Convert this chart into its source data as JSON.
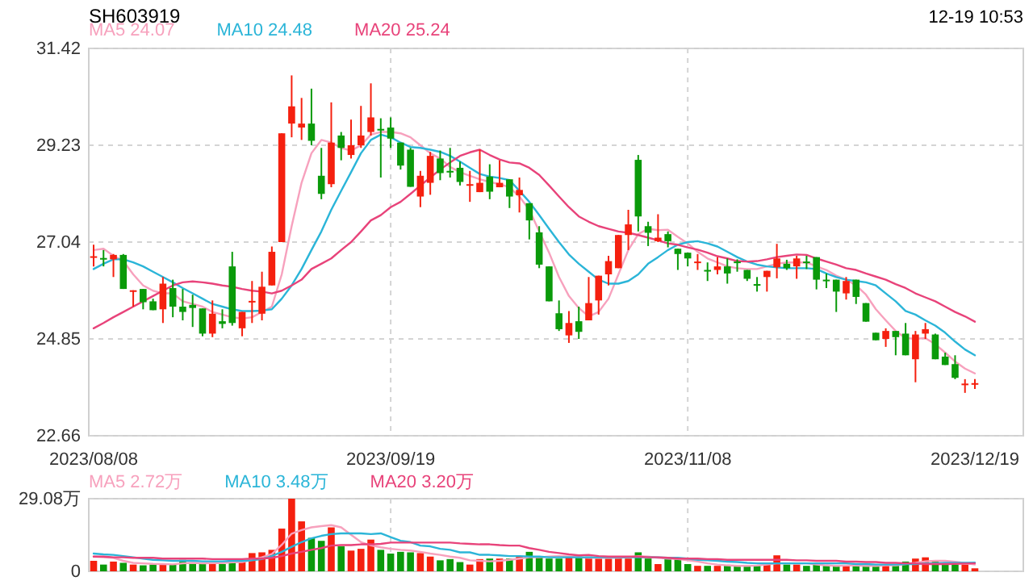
{
  "chart_data": [
    {
      "type": "candlestick",
      "title": "SH603919",
      "subtitle": "12-19 10:53",
      "categories": [
        "2023/08/08",
        null,
        null,
        null,
        null,
        null,
        null,
        null,
        null,
        null,
        null,
        null,
        null,
        null,
        null,
        null,
        null,
        null,
        null,
        null,
        null,
        null,
        null,
        null,
        null,
        null,
        null,
        null,
        null,
        null,
        "2023/09/19",
        null,
        null,
        null,
        null,
        null,
        null,
        null,
        null,
        null,
        null,
        null,
        null,
        null,
        null,
        null,
        null,
        null,
        null,
        null,
        null,
        null,
        null,
        null,
        null,
        null,
        null,
        null,
        null,
        null,
        "2023/11/08",
        null,
        null,
        null,
        null,
        null,
        null,
        null,
        null,
        null,
        null,
        null,
        null,
        null,
        null,
        null,
        null,
        null,
        null,
        null,
        null,
        null,
        null,
        null,
        null,
        null,
        null,
        null,
        null,
        "2023/12/19"
      ],
      "ohlc": [
        [
          26.7,
          26.98,
          26.49,
          26.72
        ],
        [
          26.68,
          26.86,
          26.49,
          26.66
        ],
        [
          26.65,
          26.77,
          26.25,
          26.75
        ],
        [
          26.75,
          26.77,
          25.98,
          25.98
        ],
        [
          25.93,
          25.95,
          25.58,
          25.95
        ],
        [
          25.98,
          25.98,
          25.52,
          25.68
        ],
        [
          25.7,
          25.76,
          25.5,
          25.5
        ],
        [
          25.52,
          26.25,
          25.21,
          26.1
        ],
        [
          26.0,
          26.19,
          25.34,
          25.58
        ],
        [
          25.58,
          25.98,
          25.27,
          25.46
        ],
        [
          25.62,
          25.85,
          25.12,
          25.55
        ],
        [
          25.54,
          25.54,
          24.91,
          24.97
        ],
        [
          24.97,
          25.72,
          24.89,
          25.42
        ],
        [
          25.25,
          25.52,
          25.09,
          25.19
        ],
        [
          26.49,
          26.82,
          25.15,
          25.21
        ],
        [
          25.09,
          25.46,
          24.91,
          25.46
        ],
        [
          25.69,
          26.16,
          25.21,
          25.71
        ],
        [
          25.42,
          26.37,
          25.27,
          26.03
        ],
        [
          26.06,
          26.94,
          26.06,
          26.82
        ],
        [
          27.04,
          29.5,
          27.04,
          29.5
        ],
        [
          29.72,
          30.81,
          29.41,
          30.11
        ],
        [
          29.63,
          30.3,
          29.35,
          29.72
        ],
        [
          29.72,
          30.51,
          29.23,
          29.33
        ],
        [
          28.54,
          29.17,
          28.01,
          28.13
        ],
        [
          28.35,
          30.2,
          28.28,
          29.29
        ],
        [
          29.45,
          29.53,
          28.89,
          29.17
        ],
        [
          29.01,
          29.81,
          28.93,
          29.23
        ],
        [
          29.23,
          30.12,
          29.17,
          29.45
        ],
        [
          29.53,
          30.63,
          29.45,
          29.86
        ],
        [
          29.6,
          29.84,
          28.5,
          29.58
        ],
        [
          29.63,
          29.86,
          29.17,
          29.38
        ],
        [
          29.29,
          29.29,
          28.68,
          28.77
        ],
        [
          29.13,
          29.17,
          28.29,
          28.29
        ],
        [
          28.07,
          28.65,
          27.83,
          28.54
        ],
        [
          28.38,
          29.08,
          28.11,
          28.99
        ],
        [
          28.93,
          29.11,
          28.44,
          28.6
        ],
        [
          28.65,
          29.17,
          28.5,
          28.64
        ],
        [
          28.72,
          28.86,
          28.32,
          28.4
        ],
        [
          28.33,
          28.65,
          27.95,
          28.35
        ],
        [
          28.17,
          29.13,
          28.17,
          28.38
        ],
        [
          28.52,
          28.8,
          28.01,
          28.18
        ],
        [
          28.28,
          28.89,
          28.28,
          28.38
        ],
        [
          28.46,
          28.46,
          27.81,
          28.07
        ],
        [
          28.1,
          28.5,
          27.71,
          28.22
        ],
        [
          27.92,
          27.92,
          27.1,
          27.53
        ],
        [
          27.26,
          27.4,
          26.45,
          26.53
        ],
        [
          26.49,
          26.49,
          25.7,
          25.7
        ],
        [
          25.43,
          25.72,
          25.03,
          25.07
        ],
        [
          24.93,
          25.48,
          24.76,
          25.21
        ],
        [
          25.25,
          25.58,
          24.85,
          25.01
        ],
        [
          25.27,
          26.25,
          25.27,
          25.66
        ],
        [
          25.72,
          26.28,
          25.4,
          26.28
        ],
        [
          26.31,
          26.73,
          26.06,
          26.61
        ],
        [
          26.45,
          27.2,
          26.45,
          27.2
        ],
        [
          27.2,
          27.77,
          26.86,
          27.44
        ],
        [
          28.9,
          29.01,
          27.28,
          27.62
        ],
        [
          27.4,
          27.5,
          26.95,
          27.25
        ],
        [
          27.06,
          27.67,
          27.04,
          27.14
        ],
        [
          27.22,
          27.28,
          26.92,
          27.06
        ],
        [
          26.89,
          26.89,
          26.41,
          26.77
        ],
        [
          26.8,
          26.8,
          26.49,
          26.67
        ],
        [
          26.58,
          26.77,
          26.41,
          26.6
        ],
        [
          26.41,
          26.58,
          26.16,
          26.4
        ],
        [
          26.41,
          26.7,
          26.31,
          26.49
        ],
        [
          26.49,
          26.67,
          26.1,
          26.33
        ],
        [
          26.6,
          26.65,
          26.37,
          26.59
        ],
        [
          26.41,
          26.41,
          26.16,
          26.21
        ],
        [
          26.09,
          26.25,
          25.92,
          26.08
        ],
        [
          26.25,
          26.39,
          25.92,
          26.39
        ],
        [
          26.47,
          27.0,
          26.22,
          26.67
        ],
        [
          26.55,
          26.64,
          26.41,
          26.45
        ],
        [
          26.49,
          26.73,
          26.21,
          26.67
        ],
        [
          26.6,
          26.73,
          26.43,
          26.59
        ],
        [
          26.7,
          26.7,
          25.97,
          26.19
        ],
        [
          26.19,
          26.33,
          26.0,
          26.18
        ],
        [
          26.19,
          26.19,
          25.46,
          25.92
        ],
        [
          25.88,
          26.25,
          25.74,
          26.16
        ],
        [
          26.19,
          26.19,
          25.64,
          25.8
        ],
        [
          25.66,
          25.66,
          25.24,
          25.24
        ],
        [
          24.99,
          24.99,
          24.82,
          24.82
        ],
        [
          24.85,
          25.09,
          24.67,
          25.03
        ],
        [
          25.03,
          25.03,
          24.48,
          24.89
        ],
        [
          24.97,
          25.21,
          24.48,
          24.48
        ],
        [
          24.39,
          25.03,
          23.87,
          24.95
        ],
        [
          24.97,
          25.21,
          24.85,
          25.07
        ],
        [
          24.95,
          24.97,
          24.39,
          24.39
        ],
        [
          24.45,
          24.54,
          24.26,
          24.26
        ],
        [
          24.28,
          24.48,
          23.94,
          23.97
        ],
        [
          23.82,
          23.94,
          23.63,
          23.84
        ],
        [
          23.83,
          23.94,
          23.72,
          23.85
        ]
      ],
      "colors": [
        "#f5200f",
        "#0a9a0a",
        "#f5200f",
        "#0a9a0a",
        "#f5200f",
        "#0a9a0a",
        "#0a9a0a",
        "#f5200f",
        "#0a9a0a",
        "#0a9a0a",
        "#0a9a0a",
        "#0a9a0a",
        "#f5200f",
        "#0a9a0a",
        "#0a9a0a",
        "#f5200f",
        "#f5200f",
        "#f5200f",
        "#f5200f",
        "#f5200f",
        "#f5200f",
        "#f5200f",
        "#0a9a0a",
        "#0a9a0a",
        "#f5200f",
        "#0a9a0a",
        "#f5200f",
        "#f5200f",
        "#f5200f",
        "#0a9a0a",
        "#0a9a0a",
        "#0a9a0a",
        "#0a9a0a",
        "#f5200f",
        "#f5200f",
        "#0a9a0a",
        "#0a9a0a",
        "#0a9a0a",
        "#f5200f",
        "#f5200f",
        "#0a9a0a",
        "#f5200f",
        "#0a9a0a",
        "#f5200f",
        "#0a9a0a",
        "#0a9a0a",
        "#0a9a0a",
        "#0a9a0a",
        "#f5200f",
        "#0a9a0a",
        "#f5200f",
        "#f5200f",
        "#f5200f",
        "#f5200f",
        "#f5200f",
        "#0a9a0a",
        "#0a9a0a",
        "#f5200f",
        "#0a9a0a",
        "#0a9a0a",
        "#0a9a0a",
        "#f5200f",
        "#0a9a0a",
        "#f5200f",
        "#0a9a0a",
        "#0a9a0a",
        "#0a9a0a",
        "#0a9a0a",
        "#f5200f",
        "#f5200f",
        "#0a9a0a",
        "#f5200f",
        "#0a9a0a",
        "#0a9a0a",
        "#0a9a0a",
        "#0a9a0a",
        "#f5200f",
        "#0a9a0a",
        "#0a9a0a",
        "#0a9a0a",
        "#f5200f",
        "#0a9a0a",
        "#0a9a0a",
        "#f5200f",
        "#f5200f",
        "#0a9a0a",
        "#0a9a0a",
        "#0a9a0a",
        "#f5200f",
        "#f5200f"
      ],
      "ylim": [
        22.66,
        31.42
      ],
      "yticks": [
        22.66,
        24.85,
        27.04,
        29.23,
        31.42
      ],
      "grid": true,
      "legend": "top left",
      "series": [
        {
          "type": "line",
          "name": "MA5 24.07",
          "color": "#f7a1bd",
          "values": [
            26.86,
            26.89,
            26.73,
            26.61,
            26.31,
            26.06,
            25.94,
            25.88,
            25.88,
            25.7,
            25.64,
            25.58,
            25.46,
            25.4,
            25.34,
            25.31,
            25.34,
            25.46,
            25.58,
            26.31,
            27.4,
            28.38,
            29.05,
            29.35,
            29.29,
            29.17,
            29.11,
            29.23,
            29.47,
            29.53,
            29.53,
            29.5,
            29.41,
            29.23,
            29.05,
            28.93,
            28.74,
            28.62,
            28.54,
            28.46,
            28.4,
            28.35,
            28.28,
            28.07,
            27.77,
            27.28,
            26.8,
            26.25,
            25.82,
            25.55,
            25.36,
            25.46,
            25.76,
            26.31,
            26.86,
            27.22,
            27.34,
            27.31,
            27.32,
            27.16,
            27.01,
            26.82,
            26.67,
            26.58,
            26.49,
            26.45,
            26.43,
            26.43,
            26.49,
            26.55,
            26.58,
            26.58,
            26.58,
            26.49,
            26.41,
            26.28,
            26.19,
            26.06,
            25.85,
            25.52,
            25.27,
            25.03,
            24.87,
            24.85,
            24.87,
            24.73,
            24.54,
            24.34,
            24.18,
            24.07
          ]
        },
        {
          "type": "line",
          "name": "MA10 24.48",
          "color": "#2bb5d8",
          "values": [
            26.43,
            26.55,
            26.65,
            26.65,
            26.58,
            26.49,
            26.37,
            26.25,
            26.13,
            26.0,
            25.88,
            25.76,
            25.64,
            25.58,
            25.52,
            25.48,
            25.48,
            25.49,
            25.52,
            25.76,
            26.06,
            26.43,
            26.86,
            27.28,
            27.77,
            28.2,
            28.62,
            29.05,
            29.35,
            29.47,
            29.41,
            29.29,
            29.19,
            29.17,
            29.13,
            29.08,
            28.99,
            28.86,
            28.72,
            28.58,
            28.52,
            28.49,
            28.44,
            28.2,
            27.95,
            27.65,
            27.34,
            27.04,
            26.76,
            26.55,
            26.37,
            26.19,
            26.1,
            26.1,
            26.16,
            26.31,
            26.55,
            26.7,
            26.86,
            26.98,
            27.04,
            27.06,
            27.01,
            26.94,
            26.82,
            26.7,
            26.6,
            26.53,
            26.49,
            26.47,
            26.45,
            26.45,
            26.45,
            26.43,
            26.33,
            26.25,
            26.19,
            26.16,
            26.13,
            26.06,
            25.88,
            25.7,
            25.48,
            25.4,
            25.27,
            25.15,
            24.99,
            24.79,
            24.61,
            24.48
          ]
        },
        {
          "type": "line",
          "name": "MA20 25.24",
          "color": "#e8437a",
          "values": [
            25.09,
            25.21,
            25.34,
            25.46,
            25.58,
            25.7,
            25.82,
            25.94,
            26.06,
            26.13,
            26.15,
            26.13,
            26.1,
            26.06,
            26.03,
            25.98,
            25.94,
            25.92,
            25.88,
            25.94,
            26.06,
            26.19,
            26.43,
            26.55,
            26.67,
            26.86,
            27.04,
            27.28,
            27.53,
            27.65,
            27.83,
            27.95,
            28.13,
            28.32,
            28.5,
            28.68,
            28.84,
            28.99,
            29.07,
            29.13,
            29.01,
            28.91,
            28.84,
            28.82,
            28.72,
            28.56,
            28.32,
            28.07,
            27.83,
            27.62,
            27.5,
            27.4,
            27.34,
            27.28,
            27.25,
            27.2,
            27.14,
            27.08,
            27.01,
            26.98,
            26.92,
            26.87,
            26.8,
            26.72,
            26.67,
            26.61,
            26.6,
            26.61,
            26.65,
            26.7,
            26.73,
            26.76,
            26.75,
            26.67,
            26.6,
            26.53,
            26.45,
            26.41,
            26.33,
            26.26,
            26.19,
            26.09,
            26.0,
            25.88,
            25.79,
            25.7,
            25.58,
            25.46,
            25.36,
            25.24
          ]
        }
      ]
    },
    {
      "type": "bar",
      "categories": [
        "2023/08/08",
        null,
        null,
        null,
        null,
        null,
        null,
        null,
        null,
        null,
        null,
        null,
        null,
        null,
        null,
        null,
        null,
        null,
        null,
        null,
        null,
        null,
        null,
        null,
        null,
        null,
        null,
        null,
        null,
        null,
        "2023/09/19",
        null,
        null,
        null,
        null,
        null,
        null,
        null,
        null,
        null,
        null,
        null,
        null,
        null,
        null,
        null,
        null,
        null,
        null,
        null,
        null,
        null,
        null,
        null,
        null,
        null,
        null,
        null,
        null,
        null,
        "2023/11/08",
        null,
        null,
        null,
        null,
        null,
        null,
        null,
        null,
        null,
        null,
        null,
        null,
        null,
        null,
        null,
        null,
        null,
        null,
        null,
        null,
        null,
        null,
        null,
        null,
        null,
        null,
        null,
        null,
        "2023/12/19"
      ],
      "values": [
        4.2,
        2.7,
        3.9,
        3.4,
        2.7,
        2.4,
        2.7,
        2.9,
        2.9,
        4.6,
        2.9,
        2.9,
        2.9,
        2.9,
        5.1,
        3.7,
        7.3,
        7.6,
        8.6,
        17.1,
        29.08,
        20.0,
        13.4,
        12.2,
        17.6,
        10.0,
        8.3,
        9.0,
        12.7,
        8.6,
        7.1,
        7.8,
        7.6,
        7.3,
        5.9,
        4.4,
        4.9,
        3.7,
        2.7,
        4.9,
        5.1,
        5.1,
        5.1,
        5.9,
        7.8,
        5.9,
        5.1,
        5.1,
        5.9,
        5.9,
        5.9,
        5.1,
        5.1,
        5.4,
        5.1,
        7.6,
        5.1,
        2.9,
        5.1,
        4.9,
        2.9,
        2.2,
        2.2,
        2.2,
        2.2,
        2.0,
        2.0,
        2.2,
        2.7,
        6.4,
        2.7,
        2.7,
        2.2,
        2.7,
        2.2,
        2.2,
        2.2,
        2.2,
        2.2,
        2.2,
        2.7,
        2.2,
        3.9,
        5.1,
        5.6,
        3.9,
        2.7,
        2.7,
        2.7,
        1.2
      ],
      "colors": [
        "#f5200f",
        "#0a9a0a",
        "#f5200f",
        "#0a9a0a",
        "#f5200f",
        "#0a9a0a",
        "#0a9a0a",
        "#f5200f",
        "#0a9a0a",
        "#0a9a0a",
        "#0a9a0a",
        "#0a9a0a",
        "#f5200f",
        "#0a9a0a",
        "#0a9a0a",
        "#f5200f",
        "#f5200f",
        "#f5200f",
        "#f5200f",
        "#f5200f",
        "#f5200f",
        "#f5200f",
        "#0a9a0a",
        "#0a9a0a",
        "#f5200f",
        "#0a9a0a",
        "#f5200f",
        "#f5200f",
        "#f5200f",
        "#0a9a0a",
        "#0a9a0a",
        "#0a9a0a",
        "#0a9a0a",
        "#f5200f",
        "#f5200f",
        "#0a9a0a",
        "#0a9a0a",
        "#0a9a0a",
        "#f5200f",
        "#f5200f",
        "#0a9a0a",
        "#f5200f",
        "#0a9a0a",
        "#f5200f",
        "#0a9a0a",
        "#0a9a0a",
        "#0a9a0a",
        "#0a9a0a",
        "#f5200f",
        "#0a9a0a",
        "#f5200f",
        "#f5200f",
        "#f5200f",
        "#f5200f",
        "#f5200f",
        "#0a9a0a",
        "#0a9a0a",
        "#f5200f",
        "#0a9a0a",
        "#0a9a0a",
        "#0a9a0a",
        "#f5200f",
        "#0a9a0a",
        "#f5200f",
        "#0a9a0a",
        "#0a9a0a",
        "#0a9a0a",
        "#0a9a0a",
        "#f5200f",
        "#f5200f",
        "#0a9a0a",
        "#f5200f",
        "#0a9a0a",
        "#0a9a0a",
        "#0a9a0a",
        "#0a9a0a",
        "#f5200f",
        "#0a9a0a",
        "#0a9a0a",
        "#0a9a0a",
        "#f5200f",
        "#0a9a0a",
        "#0a9a0a",
        "#f5200f",
        "#f5200f",
        "#0a9a0a",
        "#0a9a0a",
        "#0a9a0a",
        "#f5200f",
        "#f5200f"
      ],
      "ylim": [
        0,
        29.08
      ],
      "yticks": [
        0,
        {
          "value": 29.08,
          "label": "29.08万"
        }
      ],
      "grid": true,
      "legend": "top left",
      "tick_labels": "y",
      "series": [
        {
          "type": "line",
          "name": "MA5 2.72万",
          "color": "#f7a1bd",
          "values": [
            5.9,
            5.6,
            5.4,
            4.2,
            3.4,
            3.2,
            3.0,
            2.9,
            2.8,
            3.2,
            3.4,
            3.2,
            3.3,
            3.3,
            3.6,
            3.7,
            4.6,
            5.6,
            6.9,
            10.6,
            15.1,
            16.5,
            17.6,
            18.1,
            18.5,
            17.6,
            14.6,
            11.7,
            10.4,
            9.6,
            9.0,
            8.6,
            8.3,
            7.8,
            7.1,
            6.6,
            5.9,
            5.4,
            4.4,
            4.2,
            4.0,
            4.2,
            4.6,
            5.1,
            5.6,
            5.6,
            5.9,
            6.1,
            5.9,
            5.6,
            5.4,
            5.4,
            5.4,
            5.4,
            5.6,
            6.1,
            5.9,
            5.4,
            5.1,
            4.9,
            4.4,
            3.9,
            3.2,
            2.7,
            2.4,
            2.2,
            2.2,
            2.3,
            2.7,
            3.2,
            3.2,
            3.2,
            3.2,
            2.7,
            2.4,
            2.2,
            2.3,
            2.3,
            2.2,
            2.2,
            2.4,
            2.4,
            2.9,
            3.4,
            4.0,
            4.2,
            4.2,
            3.8,
            3.3,
            2.72
          ]
        },
        {
          "type": "line",
          "name": "MA10 3.48万",
          "color": "#2bb5d8",
          "values": [
            7.1,
            6.8,
            6.6,
            6.1,
            5.6,
            5.1,
            4.6,
            4.4,
            4.2,
            4.2,
            4.2,
            4.0,
            4.0,
            4.0,
            4.2,
            4.2,
            4.4,
            4.9,
            6.1,
            7.8,
            9.8,
            11.7,
            13.2,
            14.2,
            14.9,
            15.2,
            15.2,
            15.2,
            14.9,
            15.2,
            13.7,
            12.2,
            11.7,
            10.3,
            10.0,
            9.0,
            8.6,
            7.6,
            7.6,
            6.6,
            6.6,
            6.4,
            6.1,
            6.1,
            5.9,
            5.9,
            5.6,
            5.6,
            5.6,
            5.6,
            5.6,
            5.6,
            5.6,
            5.6,
            5.6,
            5.6,
            5.6,
            5.6,
            5.4,
            5.4,
            5.1,
            4.6,
            4.4,
            4.2,
            3.9,
            3.7,
            3.4,
            3.2,
            3.2,
            3.2,
            3.2,
            3.2,
            3.2,
            3.2,
            3.2,
            3.2,
            3.2,
            2.9,
            2.9,
            2.7,
            2.7,
            2.7,
            2.9,
            2.9,
            3.2,
            3.2,
            3.4,
            3.4,
            3.4,
            3.48
          ]
        },
        {
          "type": "line",
          "name": "MA20 3.20万",
          "color": "#e8437a",
          "values": [
            5.9,
            5.9,
            5.6,
            5.6,
            5.4,
            5.4,
            5.4,
            5.1,
            5.1,
            5.1,
            5.1,
            5.1,
            4.9,
            4.9,
            4.9,
            4.9,
            5.1,
            5.1,
            5.4,
            6.1,
            7.1,
            7.8,
            8.6,
            9.3,
            10.3,
            10.5,
            10.5,
            10.8,
            10.8,
            11.0,
            11.5,
            11.5,
            11.5,
            11.5,
            11.5,
            11.5,
            11.5,
            11.2,
            11.0,
            10.8,
            10.8,
            10.5,
            10.3,
            10.3,
            9.3,
            8.6,
            7.8,
            7.3,
            6.8,
            6.4,
            6.6,
            6.1,
            5.9,
            5.9,
            5.9,
            5.9,
            5.6,
            5.6,
            5.4,
            5.1,
            5.1,
            5.1,
            4.9,
            4.9,
            4.6,
            4.6,
            4.6,
            4.6,
            4.6,
            4.6,
            4.6,
            4.4,
            4.4,
            4.2,
            4.2,
            4.2,
            3.9,
            3.9,
            3.7,
            3.7,
            3.4,
            3.4,
            3.2,
            3.2,
            2.9,
            2.9,
            2.9,
            3.0,
            3.1,
            3.2
          ]
        }
      ]
    }
  ]
}
